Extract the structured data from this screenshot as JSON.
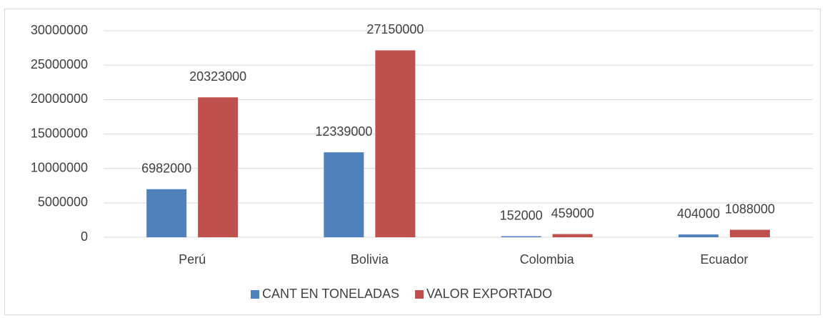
{
  "chart_data": {
    "type": "bar",
    "categories": [
      "Perú",
      "Bolivia",
      "Colombia",
      "Ecuador"
    ],
    "series": [
      {
        "name": "CANT EN TONELADAS",
        "color": "#4f81bd",
        "values": [
          6982000,
          12339000,
          152000,
          404000
        ]
      },
      {
        "name": "VALOR EXPORTADO",
        "color": "#c0504d",
        "values": [
          20323000,
          27150000,
          459000,
          1088000
        ]
      }
    ],
    "ylim": [
      0,
      30000000
    ],
    "yticks": [
      0,
      5000000,
      10000000,
      15000000,
      20000000,
      25000000,
      30000000
    ],
    "grid": true,
    "legend": "bottom"
  }
}
